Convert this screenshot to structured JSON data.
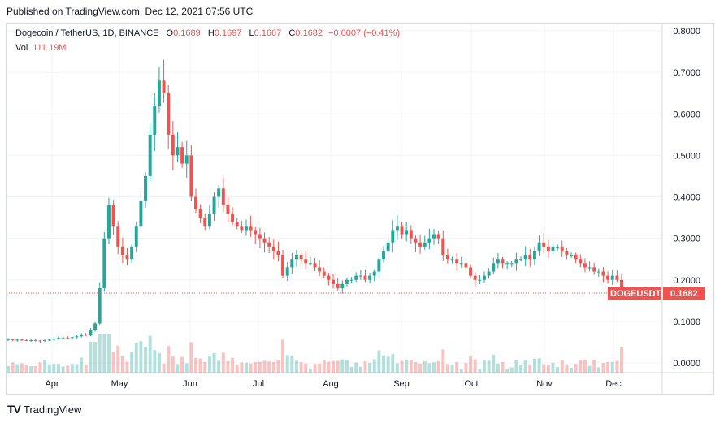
{
  "published": "Published on TradingView.com, Dec 12, 2021 07:56 UTC",
  "legend": {
    "symbol": "Dogecoin / TetherUS, 1D, BINANCE",
    "open_key": "O",
    "open": "0.1689",
    "high_key": "H",
    "high": "0.1697",
    "low_key": "L",
    "low": "0.1667",
    "close_key": "C",
    "close": "0.1682",
    "change": "−0.0007 (−0.41%)",
    "vol_key": "Vol",
    "vol": "111.19M"
  },
  "footer": {
    "logo": "TV",
    "brand": "TradingView"
  },
  "price_tag": {
    "name": "DOGEUSDT",
    "value": "0.1682"
  },
  "colors": {
    "up": "#26a69a",
    "down": "#ef5350",
    "grid": "#f0f3fa"
  },
  "chart_data": {
    "type": "candlestick",
    "symbol": "DOGEUSDT",
    "y_ticks": [
      "0.8000",
      "0.7000",
      "0.6000",
      "0.5000",
      "0.4000",
      "0.3000",
      "0.2000",
      "0.1000",
      "0.0000"
    ],
    "ylim": [
      0,
      0.8
    ],
    "x_ticks": [
      "Apr",
      "May",
      "Jun",
      "Jul",
      "Aug",
      "Sep",
      "Oct",
      "Nov",
      "Dec"
    ],
    "last_close": 0.1682,
    "series": [
      {
        "name": "price",
        "close_approx": [
          0.057,
          0.055,
          0.056,
          0.055,
          0.054,
          0.055,
          0.054,
          0.053,
          0.055,
          0.056,
          0.058,
          0.06,
          0.061,
          0.06,
          0.062,
          0.064,
          0.068,
          0.066,
          0.08,
          0.095,
          0.18,
          0.3,
          0.38,
          0.33,
          0.28,
          0.26,
          0.25,
          0.28,
          0.33,
          0.39,
          0.45,
          0.55,
          0.62,
          0.68,
          0.65,
          0.55,
          0.5,
          0.52,
          0.48,
          0.5,
          0.4,
          0.37,
          0.35,
          0.33,
          0.36,
          0.4,
          0.42,
          0.38,
          0.36,
          0.34,
          0.33,
          0.32,
          0.33,
          0.32,
          0.31,
          0.3,
          0.29,
          0.28,
          0.27,
          0.26,
          0.21,
          0.23,
          0.25,
          0.26,
          0.25,
          0.24,
          0.24,
          0.23,
          0.22,
          0.21,
          0.2,
          0.19,
          0.18,
          0.19,
          0.2,
          0.2,
          0.21,
          0.21,
          0.2,
          0.21,
          0.22,
          0.25,
          0.27,
          0.29,
          0.32,
          0.33,
          0.31,
          0.32,
          0.3,
          0.29,
          0.28,
          0.29,
          0.3,
          0.31,
          0.3,
          0.26,
          0.25,
          0.25,
          0.24,
          0.24,
          0.23,
          0.21,
          0.2,
          0.2,
          0.21,
          0.22,
          0.24,
          0.25,
          0.24,
          0.24,
          0.24,
          0.25,
          0.25,
          0.26,
          0.25,
          0.27,
          0.29,
          0.28,
          0.27,
          0.28,
          0.28,
          0.27,
          0.26,
          0.26,
          0.25,
          0.24,
          0.23,
          0.23,
          0.22,
          0.22,
          0.21,
          0.2,
          0.21,
          0.2,
          0.1682
        ]
      },
      {
        "name": "volume",
        "unit": "M",
        "last": 111.19
      }
    ]
  }
}
